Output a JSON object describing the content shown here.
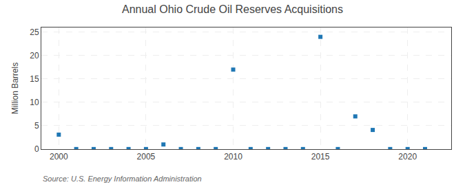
{
  "chart_data": {
    "type": "scatter",
    "title": "Annual Ohio Crude Oil Reserves Acquisitions",
    "ylabel": "Million Barrels",
    "annotations": [
      "Source: U.S. Energy Information Administration"
    ],
    "x": [
      2000,
      2001,
      2002,
      2003,
      2004,
      2005,
      2006,
      2007,
      2008,
      2009,
      2010,
      2011,
      2012,
      2013,
      2014,
      2015,
      2016,
      2017,
      2018,
      2019,
      2020,
      2021
    ],
    "values": [
      3.1,
      0.02,
      0.02,
      0.02,
      0.02,
      0.02,
      1.0,
      0.02,
      0.02,
      0.02,
      17.0,
      0.02,
      0.02,
      0.02,
      0.02,
      24.0,
      0.02,
      7.0,
      4.1,
      0.02,
      0.02,
      0.02
    ],
    "marker": "square",
    "xlim": [
      1999.0,
      2022.5
    ],
    "xticks": [
      2000,
      2005,
      2010,
      2015,
      2020
    ],
    "ylim": [
      0,
      26
    ],
    "yticks": [
      0,
      5,
      10,
      15,
      20,
      25
    ],
    "grid": true
  }
}
